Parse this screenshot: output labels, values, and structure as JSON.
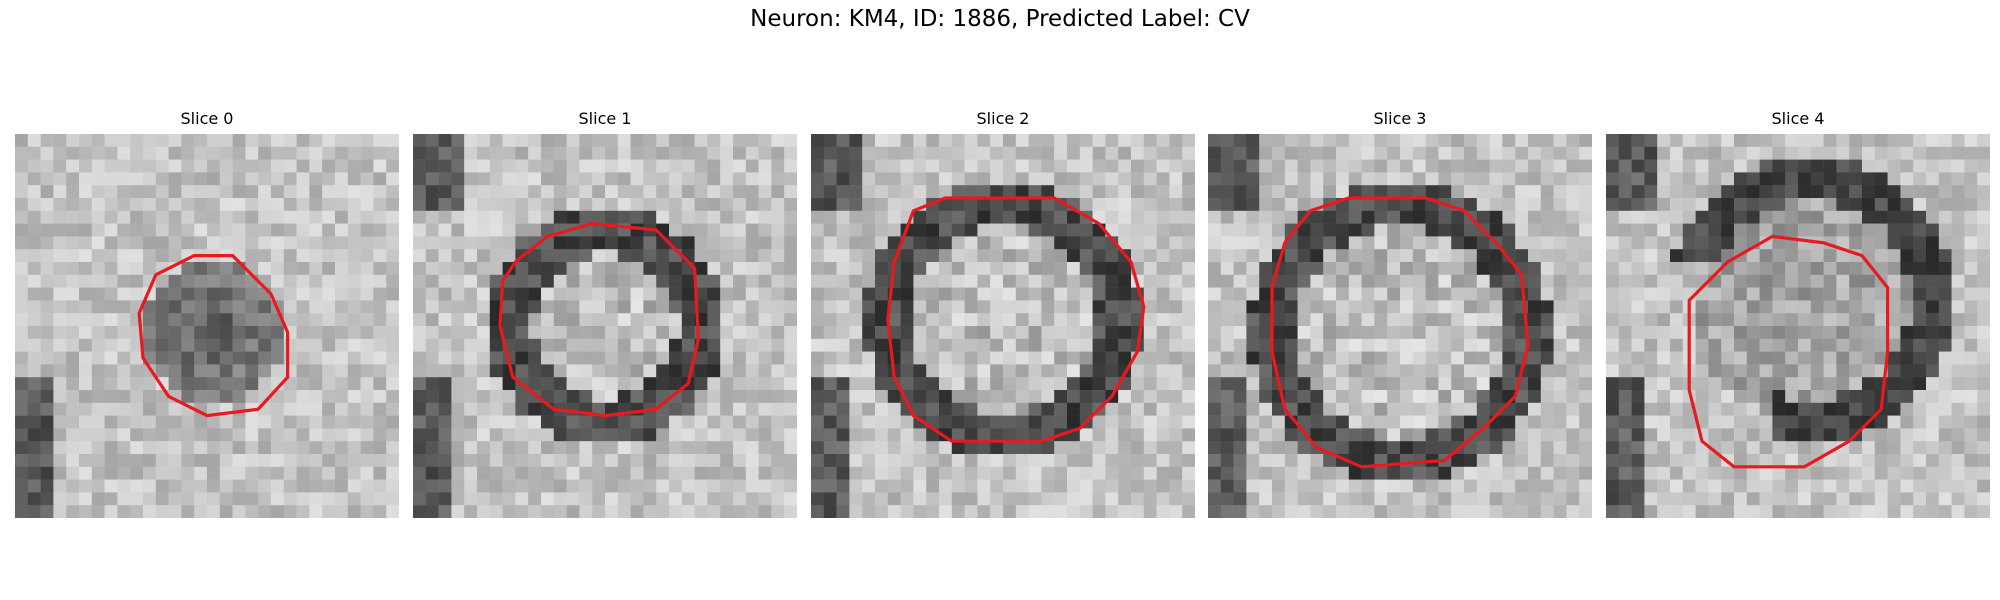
{
  "figure": {
    "title": "Neuron: KM4, ID: 1886, Predicted Label: CV",
    "contour_color": "#e8191f"
  },
  "panels": [
    {
      "title": "Slice 0",
      "contour": "mid-dark blob, centered slightly left, outlined by a small octagon"
    },
    {
      "title": "Slice 1",
      "contour": "ring of dark pixels outlined by a medium octagon"
    },
    {
      "title": "Slice 2",
      "contour": "bright interior surrounded by dark ring, large octagon"
    },
    {
      "title": "Slice 3",
      "contour": "bright round interior with dark border, large octagon"
    },
    {
      "title": "Slice 4",
      "contour": "faint interior with darker upper-right ring, medium octagon"
    }
  ]
}
